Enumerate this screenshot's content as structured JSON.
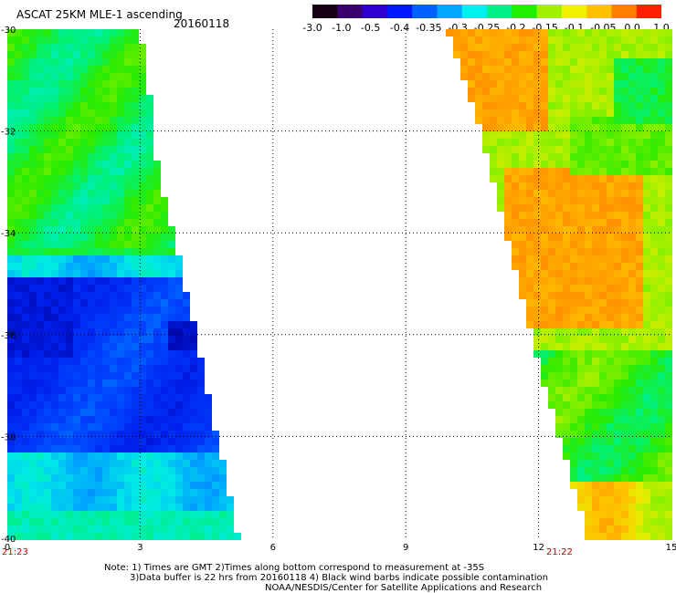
{
  "title": "ASCAT 25KM MLE-1 ascending",
  "date": "20160118",
  "colorbar": {
    "labels": [
      "-3.0",
      "-1.0",
      "-0.5",
      "-0.4",
      "-0.35",
      "-0.3",
      "-0.25",
      "-0.2",
      "-0.15",
      "-0.1",
      "-0.05",
      "0.0",
      "1.0"
    ],
    "colors": [
      "#150015",
      "#3a0070",
      "#3000d0",
      "#0018ff",
      "#0060ff",
      "#00a8ff",
      "#00f0f0",
      "#00f088",
      "#20f000",
      "#a0f000",
      "#f0f000",
      "#ffc000",
      "#ff8000",
      "#ff2000"
    ]
  },
  "axes": {
    "x_ticks": [
      "0",
      "3",
      "6",
      "9",
      "12",
      "15"
    ],
    "y_ticks": [
      "-30",
      "-32",
      "-34",
      "-36",
      "-38",
      "-40"
    ],
    "xlim": [
      0,
      15
    ],
    "ylim": [
      -40,
      -30
    ]
  },
  "times": {
    "left": "21:23",
    "right": "21:22"
  },
  "notes": [
    "Note: 1) Times are GMT 2)Times along bottom correspond to measurement at -35S",
    "3)Data buffer is 22 hrs from 20160118 4) Black wind barbs indicate possible contamination",
    "NOAA/NESDIS/Center for Satellite Applications and Research"
  ]
}
